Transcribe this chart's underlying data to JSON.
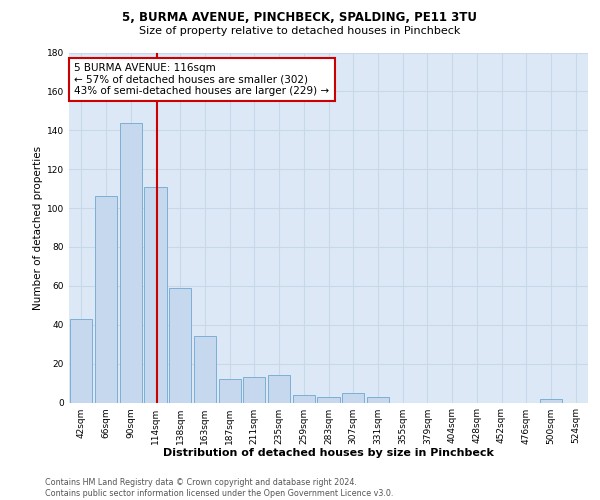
{
  "title1": "5, BURMA AVENUE, PINCHBECK, SPALDING, PE11 3TU",
  "title2": "Size of property relative to detached houses in Pinchbeck",
  "xlabel": "Distribution of detached houses by size in Pinchbeck",
  "ylabel": "Number of detached properties",
  "bar_labels": [
    "42sqm",
    "66sqm",
    "90sqm",
    "114sqm",
    "138sqm",
    "163sqm",
    "187sqm",
    "211sqm",
    "235sqm",
    "259sqm",
    "283sqm",
    "307sqm",
    "331sqm",
    "355sqm",
    "379sqm",
    "404sqm",
    "428sqm",
    "452sqm",
    "476sqm",
    "500sqm",
    "524sqm"
  ],
  "bar_values": [
    43,
    106,
    144,
    111,
    59,
    34,
    12,
    13,
    14,
    4,
    3,
    5,
    3,
    0,
    0,
    0,
    0,
    0,
    0,
    2,
    0
  ],
  "bar_color": "#c5d8ee",
  "bar_edgecolor": "#7bafd4",
  "annotation_text": "5 BURMA AVENUE: 116sqm\n← 57% of detached houses are smaller (302)\n43% of semi-detached houses are larger (229) →",
  "annotation_box_color": "#ffffff",
  "annotation_box_edgecolor": "#cc0000",
  "vline_color": "#cc0000",
  "ylim": [
    0,
    180
  ],
  "yticks": [
    0,
    20,
    40,
    60,
    80,
    100,
    120,
    140,
    160,
    180
  ],
  "grid_color": "#c8d8ea",
  "background_color": "#dce8f5",
  "footer_text": "Contains HM Land Registry data © Crown copyright and database right 2024.\nContains public sector information licensed under the Open Government Licence v3.0.",
  "title1_fontsize": 8.5,
  "title2_fontsize": 8.0,
  "ylabel_fontsize": 7.5,
  "xlabel_fontsize": 8.0,
  "tick_fontsize": 6.5,
  "ann_fontsize": 7.5,
  "footer_fontsize": 5.8
}
